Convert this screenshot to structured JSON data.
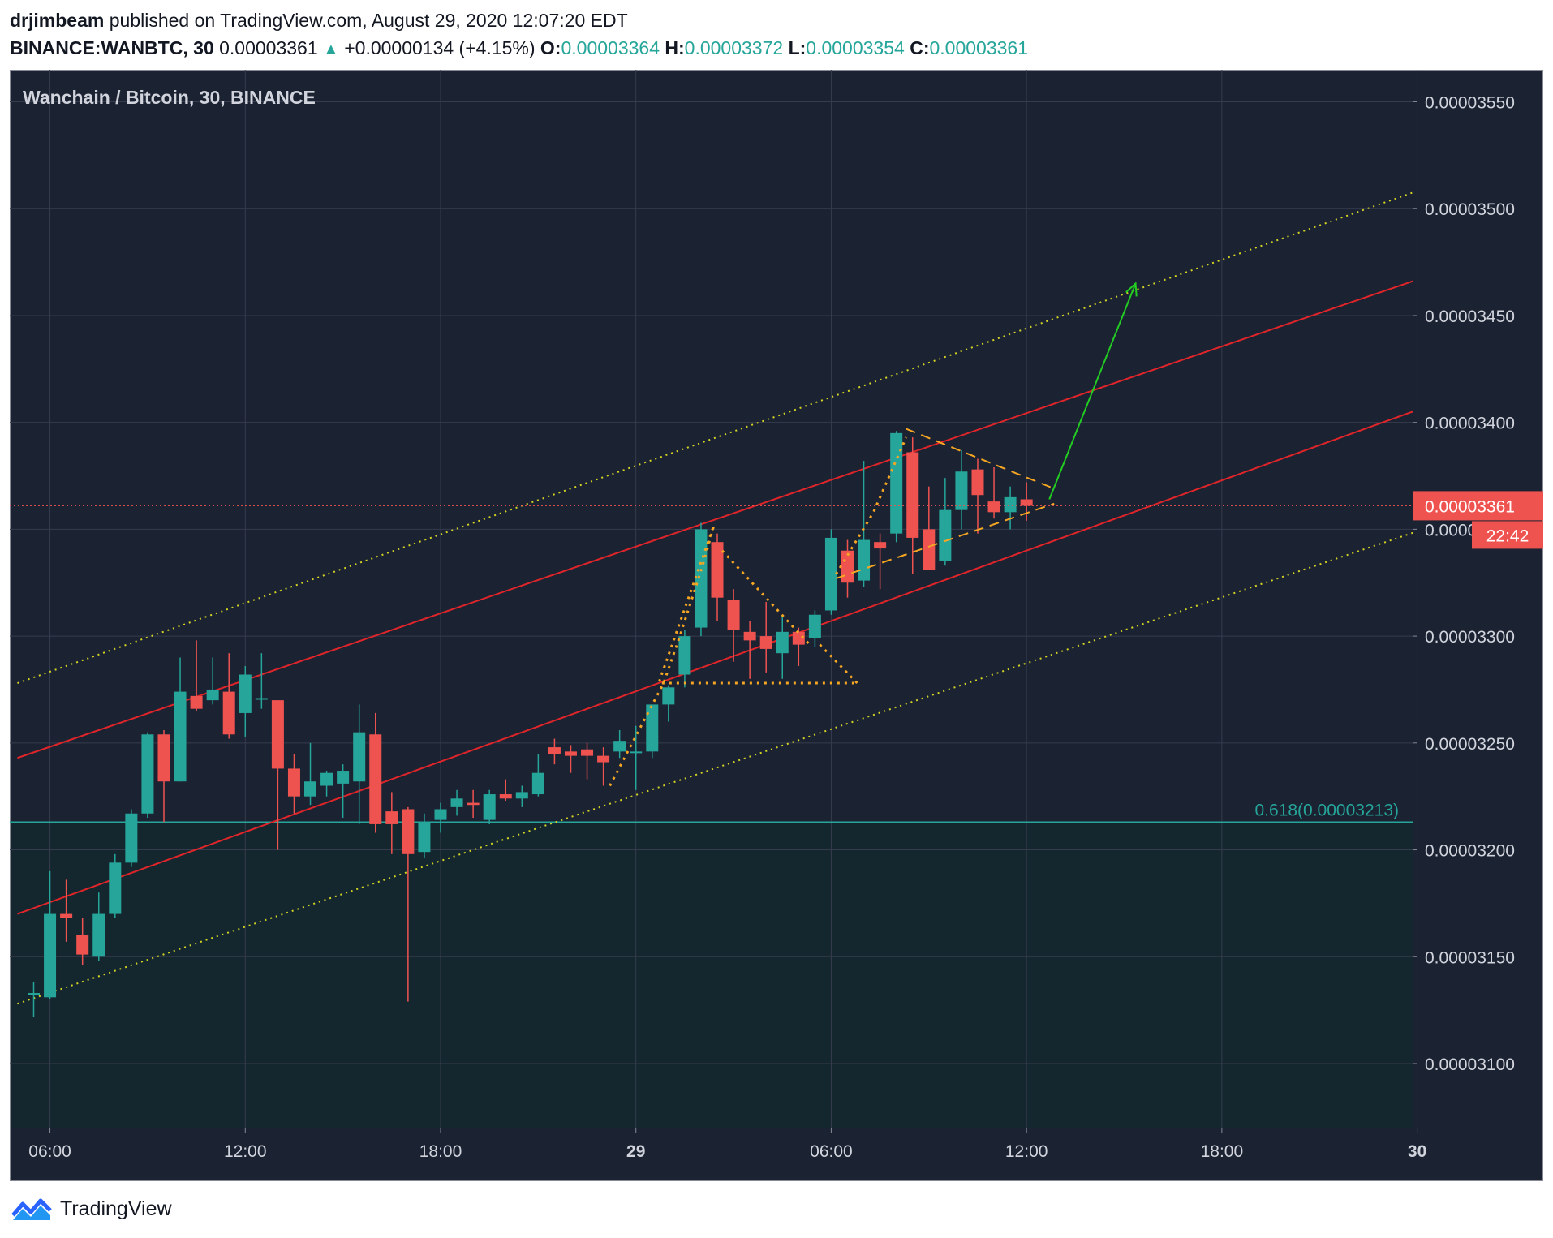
{
  "header": {
    "author": "drjimbeam",
    "published": "published on TradingView.com, August 29, 2020 12:07:20 EDT",
    "symbol": "BINANCE:WANBTC, 30",
    "last": "0.00003361",
    "change": "+0.00000134 (+4.15%)",
    "o_label": "O:",
    "o": "0.00003364",
    "h_label": "H:",
    "h": "0.00003372",
    "l_label": "L:",
    "l": "0.00003354",
    "c_label": "C:",
    "c": "0.00003361"
  },
  "footer": {
    "brand": "TradingView"
  },
  "colors": {
    "background": "#1b2232",
    "grid": "#363c4e",
    "up": "#26a69a",
    "down": "#ef5350",
    "channel": "#e0252a",
    "outer_channel": "#d4d422",
    "pattern": "#f5a623",
    "arrow": "#22cc22",
    "fib": "#26a69a",
    "text": "#d1d4dc"
  },
  "chart_data": {
    "type": "candlestick",
    "title": "Wanchain / Bitcoin, 30, BINANCE",
    "ylim": [
      3.07e-05,
      3.565e-05
    ],
    "yticks": [
      "0.00003100",
      "0.00003150",
      "0.00003200",
      "0.00003250",
      "0.00003300",
      "0.00003350",
      "0.00003400",
      "0.00003450",
      "0.00003500",
      "0.00003550"
    ],
    "xticks": [
      {
        "label": "06:00",
        "bar": 1
      },
      {
        "label": "12:00",
        "bar": 13
      },
      {
        "label": "18:00",
        "bar": 25
      },
      {
        "label": "29",
        "bar": 37,
        "bold": true
      },
      {
        "label": "06:00",
        "bar": 49
      },
      {
        "label": "12:00",
        "bar": 61
      },
      {
        "label": "18:00",
        "bar": 73
      },
      {
        "label": "30",
        "bar": 85,
        "bold": true
      }
    ],
    "last_price": {
      "value": "0.00003361",
      "countdown": "22:42"
    },
    "fib": {
      "label": "0.618(0.00003213)",
      "value": 3.213e-05
    },
    "candles": [
      {
        "o": 3.133e-05,
        "h": 3.138e-05,
        "l": 3.122e-05,
        "c": 3.133e-05
      },
      {
        "o": 3.131e-05,
        "h": 3.19e-05,
        "l": 3.13e-05,
        "c": 3.17e-05
      },
      {
        "o": 3.17e-05,
        "h": 3.186e-05,
        "l": 3.157e-05,
        "c": 3.168e-05
      },
      {
        "o": 3.16e-05,
        "h": 3.168e-05,
        "l": 3.146e-05,
        "c": 3.151e-05
      },
      {
        "o": 3.15e-05,
        "h": 3.18e-05,
        "l": 3.148e-05,
        "c": 3.17e-05
      },
      {
        "o": 3.17e-05,
        "h": 3.198e-05,
        "l": 3.168e-05,
        "c": 3.194e-05
      },
      {
        "o": 3.194e-05,
        "h": 3.219e-05,
        "l": 3.192e-05,
        "c": 3.217e-05
      },
      {
        "o": 3.217e-05,
        "h": 3.255e-05,
        "l": 3.215e-05,
        "c": 3.254e-05
      },
      {
        "o": 3.254e-05,
        "h": 3.256e-05,
        "l": 3.213e-05,
        "c": 3.232e-05
      },
      {
        "o": 3.232e-05,
        "h": 3.29e-05,
        "l": 3.232e-05,
        "c": 3.274e-05
      },
      {
        "o": 3.272e-05,
        "h": 3.298e-05,
        "l": 3.265e-05,
        "c": 3.266e-05
      },
      {
        "o": 3.27e-05,
        "h": 3.29e-05,
        "l": 3.268e-05,
        "c": 3.275e-05
      },
      {
        "o": 3.274e-05,
        "h": 3.292e-05,
        "l": 3.252e-05,
        "c": 3.254e-05
      },
      {
        "o": 3.264e-05,
        "h": 3.286e-05,
        "l": 3.253e-05,
        "c": 3.282e-05
      },
      {
        "o": 3.271e-05,
        "h": 3.292e-05,
        "l": 3.266e-05,
        "c": 3.271e-05
      },
      {
        "o": 3.27e-05,
        "h": 3.27e-05,
        "l": 3.2e-05,
        "c": 3.238e-05
      },
      {
        "o": 3.238e-05,
        "h": 3.245e-05,
        "l": 3.217e-05,
        "c": 3.225e-05
      },
      {
        "o": 3.225e-05,
        "h": 3.25e-05,
        "l": 3.221e-05,
        "c": 3.232e-05
      },
      {
        "o": 3.23e-05,
        "h": 3.237e-05,
        "l": 3.225e-05,
        "c": 3.236e-05
      },
      {
        "o": 3.231e-05,
        "h": 3.24e-05,
        "l": 3.215e-05,
        "c": 3.237e-05
      },
      {
        "o": 3.232e-05,
        "h": 3.268e-05,
        "l": 3.212e-05,
        "c": 3.255e-05
      },
      {
        "o": 3.254e-05,
        "h": 3.264e-05,
        "l": 3.208e-05,
        "c": 3.212e-05
      },
      {
        "o": 3.218e-05,
        "h": 3.227e-05,
        "l": 3.198e-05,
        "c": 3.212e-05
      },
      {
        "o": 3.219e-05,
        "h": 3.22e-05,
        "l": 3.129e-05,
        "c": 3.198e-05
      },
      {
        "o": 3.199e-05,
        "h": 3.217e-05,
        "l": 3.196e-05,
        "c": 3.213e-05
      },
      {
        "o": 3.214e-05,
        "h": 3.222e-05,
        "l": 3.208e-05,
        "c": 3.219e-05
      },
      {
        "o": 3.22e-05,
        "h": 3.228e-05,
        "l": 3.216e-05,
        "c": 3.224e-05
      },
      {
        "o": 3.222e-05,
        "h": 3.228e-05,
        "l": 3.215e-05,
        "c": 3.221e-05
      },
      {
        "o": 3.214e-05,
        "h": 3.228e-05,
        "l": 3.212e-05,
        "c": 3.226e-05
      },
      {
        "o": 3.226e-05,
        "h": 3.233e-05,
        "l": 3.223e-05,
        "c": 3.224e-05
      },
      {
        "o": 3.224e-05,
        "h": 3.23e-05,
        "l": 3.22e-05,
        "c": 3.227e-05
      },
      {
        "o": 3.226e-05,
        "h": 3.245e-05,
        "l": 3.225e-05,
        "c": 3.236e-05
      },
      {
        "o": 3.248e-05,
        "h": 3.252e-05,
        "l": 3.24e-05,
        "c": 3.245e-05
      },
      {
        "o": 3.246e-05,
        "h": 3.249e-05,
        "l": 3.236e-05,
        "c": 3.244e-05
      },
      {
        "o": 3.247e-05,
        "h": 3.25e-05,
        "l": 3.233e-05,
        "c": 3.244e-05
      },
      {
        "o": 3.244e-05,
        "h": 3.248e-05,
        "l": 3.23e-05,
        "c": 3.241e-05
      },
      {
        "o": 3.246e-05,
        "h": 3.256e-05,
        "l": 3.243e-05,
        "c": 3.251e-05
      },
      {
        "o": 3.246e-05,
        "h": 3.258e-05,
        "l": 3.228e-05,
        "c": 3.246e-05
      },
      {
        "o": 3.246e-05,
        "h": 3.268e-05,
        "l": 3.243e-05,
        "c": 3.268e-05
      },
      {
        "o": 3.268e-05,
        "h": 3.277e-05,
        "l": 3.26e-05,
        "c": 3.276e-05
      },
      {
        "o": 3.282e-05,
        "h": 3.303e-05,
        "l": 3.276e-05,
        "c": 3.3e-05
      },
      {
        "o": 3.304e-05,
        "h": 3.353e-05,
        "l": 3.3e-05,
        "c": 3.35e-05
      },
      {
        "o": 3.344e-05,
        "h": 3.348e-05,
        "l": 3.307e-05,
        "c": 3.318e-05
      },
      {
        "o": 3.317e-05,
        "h": 3.322e-05,
        "l": 3.288e-05,
        "c": 3.303e-05
      },
      {
        "o": 3.302e-05,
        "h": 3.307e-05,
        "l": 3.28e-05,
        "c": 3.298e-05
      },
      {
        "o": 3.3e-05,
        "h": 3.316e-05,
        "l": 3.283e-05,
        "c": 3.294e-05
      },
      {
        "o": 3.292e-05,
        "h": 3.309e-05,
        "l": 3.28e-05,
        "c": 3.302e-05
      },
      {
        "o": 3.302e-05,
        "h": 3.304e-05,
        "l": 3.286e-05,
        "c": 3.296e-05
      },
      {
        "o": 3.299e-05,
        "h": 3.312e-05,
        "l": 3.295e-05,
        "c": 3.31e-05
      },
      {
        "o": 3.312e-05,
        "h": 3.35e-05,
        "l": 3.31e-05,
        "c": 3.346e-05
      },
      {
        "o": 3.34e-05,
        "h": 3.345e-05,
        "l": 3.318e-05,
        "c": 3.325e-05
      },
      {
        "o": 3.326e-05,
        "h": 3.382e-05,
        "l": 3.323e-05,
        "c": 3.345e-05
      },
      {
        "o": 3.344e-05,
        "h": 3.348e-05,
        "l": 3.322e-05,
        "c": 3.341e-05
      },
      {
        "o": 3.348e-05,
        "h": 3.396e-05,
        "l": 3.344e-05,
        "c": 3.395e-05
      },
      {
        "o": 3.386e-05,
        "h": 3.393e-05,
        "l": 3.329e-05,
        "c": 3.346e-05
      },
      {
        "o": 3.35e-05,
        "h": 3.37e-05,
        "l": 3.332e-05,
        "c": 3.331e-05
      },
      {
        "o": 3.335e-05,
        "h": 3.374e-05,
        "l": 3.333e-05,
        "c": 3.359e-05
      },
      {
        "o": 3.359e-05,
        "h": 3.387e-05,
        "l": 3.35e-05,
        "c": 3.377e-05
      },
      {
        "o": 3.378e-05,
        "h": 3.383e-05,
        "l": 3.348e-05,
        "c": 3.366e-05
      },
      {
        "o": 3.363e-05,
        "h": 3.379e-05,
        "l": 3.355e-05,
        "c": 3.358e-05
      },
      {
        "o": 3.358e-05,
        "h": 3.37e-05,
        "l": 3.35e-05,
        "c": 3.365e-05
      },
      {
        "o": 3.364e-05,
        "h": 3.372e-05,
        "l": 3.354e-05,
        "c": 3.361e-05
      }
    ],
    "overlays": {
      "channel_upper": {
        "x": [
          -1,
          92
        ],
        "y": [
          3.243e-05,
          3.485e-05
        ]
      },
      "channel_lower": {
        "x": [
          -1,
          92
        ],
        "y": [
          3.17e-05,
          3.425e-05
        ]
      },
      "outer_upper": {
        "x": [
          -1,
          92
        ],
        "y": [
          3.278e-05,
          3.527e-05
        ]
      },
      "outer_lower": {
        "x": [
          -1,
          92
        ],
        "y": [
          3.128e-05,
          3.367e-05
        ]
      },
      "pattern_left": {
        "x": [
          35.4,
          37.6,
          38.7,
          39.7,
          41.1,
          41.8,
          38.4,
          50.6
        ],
        "y": [
          3.23e-05,
          3.262e-05,
          3.278e-05,
          3.3e-05,
          3.333e-05,
          3.352e-05,
          3.278e-05,
          3.278e-05
        ]
      },
      "pattern_right": {
        "x": [
          42.3,
          47.8
        ],
        "y": [
          3.34e-05,
          3.295e-05
        ]
      },
      "pattern_tri": {
        "x": [
          48.3,
          50.6
        ],
        "y": [
          3.296e-05,
          3.278e-05
        ]
      },
      "flag_rise": {
        "x": [
          49.3,
          51.6,
          53.6
        ],
        "y": [
          3.329e-05,
          3.358e-05,
          3.393e-05
        ]
      },
      "flag_top": {
        "x": [
          53.6,
          62.7
        ],
        "y": [
          3.397e-05,
          3.369e-05
        ]
      },
      "flag_bottom": {
        "x": [
          49.3,
          62.7
        ],
        "y": [
          3.327e-05,
          3.362e-05
        ]
      },
      "arrow": {
        "x": [
          62.4,
          67.7
        ],
        "y": [
          3.364e-05,
          3.465e-05
        ]
      }
    }
  }
}
